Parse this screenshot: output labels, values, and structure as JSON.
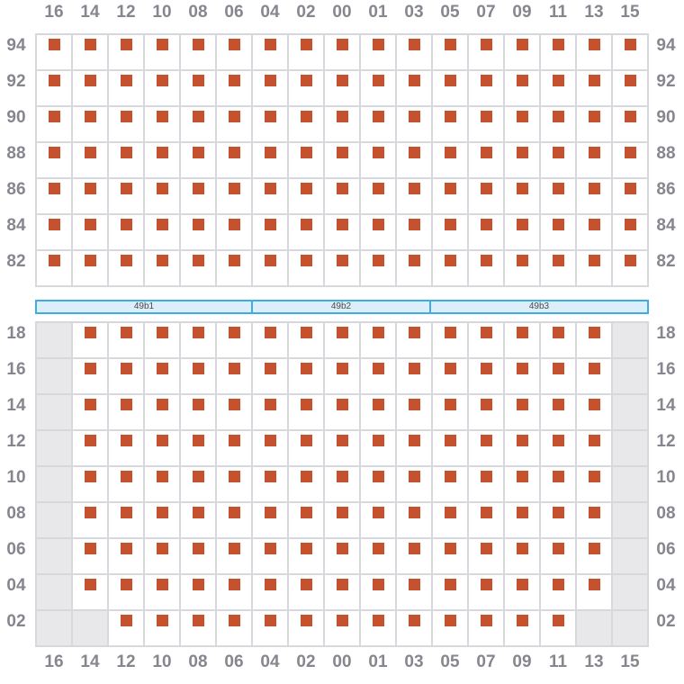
{
  "axis": {
    "columns": [
      "16",
      "14",
      "12",
      "10",
      "08",
      "06",
      "04",
      "02",
      "00",
      "01",
      "03",
      "05",
      "07",
      "09",
      "11",
      "13",
      "15"
    ],
    "deck_tiers": [
      "94",
      "92",
      "90",
      "88",
      "86",
      "84",
      "82"
    ],
    "hold_tiers": [
      "18",
      "16",
      "14",
      "12",
      "10",
      "08",
      "06",
      "04",
      "02"
    ]
  },
  "deck_section": {
    "grid": [
      "11111111111111111",
      "11111111111111111",
      "11111111111111111",
      "11111111111111111",
      "11111111111111111",
      "11111111111111111",
      "11111111111111111"
    ]
  },
  "hold_section": {
    "grid": [
      "01111111111111110",
      "01111111111111110",
      "01111111111111110",
      "01111111111111110",
      "01111111111111110",
      "01111111111111110",
      "01111111111111110",
      "01111111111111110",
      "00111111111111100"
    ]
  },
  "hatch_bar": {
    "segments": [
      {
        "label": "49b1"
      },
      {
        "label": "49b2"
      },
      {
        "label": "49b3"
      }
    ]
  },
  "colors": {
    "container": "#C5512E",
    "grid_line": "#D8D8DC",
    "blocked_cell": "#E8E8EB",
    "axis_label": "#86868F",
    "hatch_border": "#3FADE3",
    "hatch_fill": "#DCEEF9",
    "hatch_label": "#4A4A4A"
  }
}
